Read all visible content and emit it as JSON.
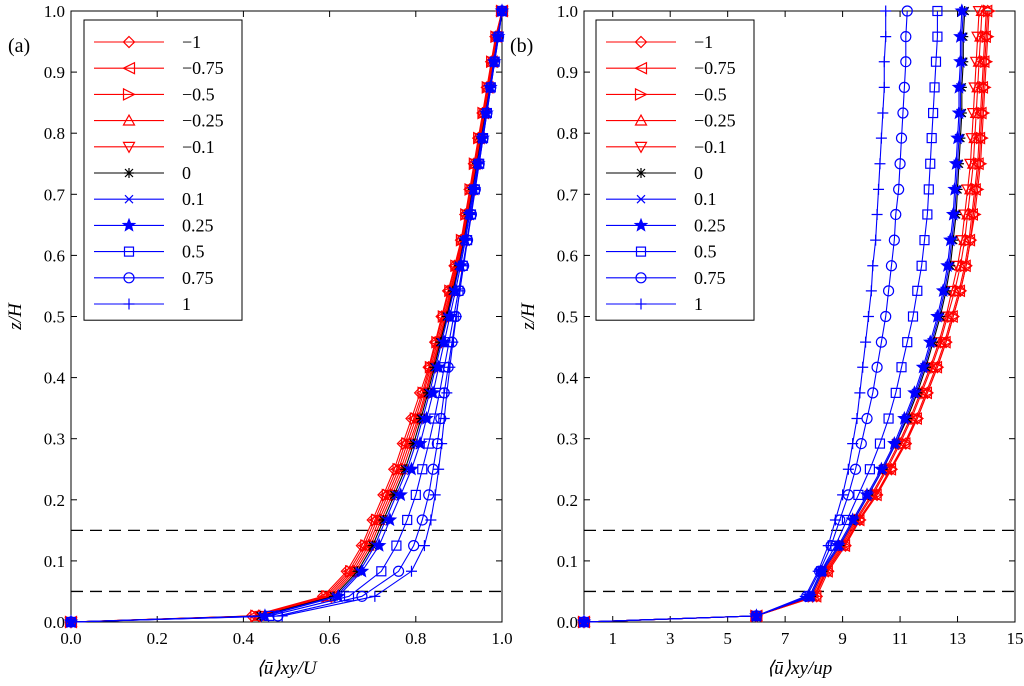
{
  "chart_data": [
    {
      "type": "line",
      "panel": "(a)",
      "xlabel": "⟨ū⟩xy/U",
      "ylabel": "z/H",
      "xlim": [
        0,
        1
      ],
      "ylim": [
        0,
        1
      ],
      "xticks": [
        "0.0",
        "0.2",
        "0.4",
        "0.6",
        "0.8",
        "1.0"
      ],
      "yticks": [
        "0.0",
        "0.1",
        "0.2",
        "0.3",
        "0.4",
        "0.5",
        "0.6",
        "0.7",
        "0.8",
        "0.9",
        "1.0"
      ],
      "hlines": [
        0.05,
        0.15
      ],
      "legend": "top-left",
      "z": [
        0,
        0.01,
        0.042,
        0.083,
        0.125,
        0.167,
        0.208,
        0.25,
        0.292,
        0.333,
        0.375,
        0.417,
        0.458,
        0.5,
        0.542,
        0.583,
        0.625,
        0.667,
        0.708,
        0.75,
        0.792,
        0.833,
        0.875,
        0.917,
        0.958,
        1.0
      ],
      "series": [
        {
          "name": "−1",
          "color": "#ff0000",
          "marker": "diamond",
          "values": [
            0,
            0.42,
            0.585,
            0.64,
            0.675,
            0.7,
            0.725,
            0.75,
            0.77,
            0.79,
            0.81,
            0.83,
            0.845,
            0.86,
            0.875,
            0.89,
            0.905,
            0.915,
            0.925,
            0.935,
            0.945,
            0.955,
            0.965,
            0.975,
            0.985,
            1.0
          ]
        },
        {
          "name": "−0.75",
          "color": "#ff0000",
          "marker": "triangle-left",
          "values": [
            0,
            0.425,
            0.59,
            0.645,
            0.68,
            0.705,
            0.73,
            0.755,
            0.775,
            0.795,
            0.815,
            0.832,
            0.847,
            0.862,
            0.877,
            0.892,
            0.906,
            0.916,
            0.926,
            0.936,
            0.946,
            0.956,
            0.966,
            0.976,
            0.986,
            1.0
          ]
        },
        {
          "name": "−0.5",
          "color": "#ff0000",
          "marker": "triangle-right",
          "values": [
            0,
            0.43,
            0.595,
            0.65,
            0.685,
            0.71,
            0.735,
            0.76,
            0.78,
            0.8,
            0.818,
            0.835,
            0.85,
            0.865,
            0.88,
            0.894,
            0.907,
            0.917,
            0.927,
            0.937,
            0.947,
            0.957,
            0.967,
            0.977,
            0.987,
            1.0
          ]
        },
        {
          "name": "−0.25",
          "color": "#ff0000",
          "marker": "triangle-up",
          "values": [
            0,
            0.435,
            0.6,
            0.655,
            0.69,
            0.715,
            0.74,
            0.765,
            0.785,
            0.805,
            0.822,
            0.838,
            0.853,
            0.868,
            0.882,
            0.896,
            0.909,
            0.919,
            0.929,
            0.938,
            0.948,
            0.958,
            0.968,
            0.978,
            0.988,
            1.0
          ]
        },
        {
          "name": "−0.1",
          "color": "#ff0000",
          "marker": "triangle-down",
          "values": [
            0,
            0.44,
            0.605,
            0.66,
            0.695,
            0.72,
            0.745,
            0.77,
            0.79,
            0.808,
            0.825,
            0.84,
            0.855,
            0.87,
            0.884,
            0.898,
            0.91,
            0.92,
            0.93,
            0.94,
            0.95,
            0.96,
            0.97,
            0.98,
            0.99,
            1.0
          ]
        },
        {
          "name": "0",
          "color": "#000000",
          "marker": "asterisk",
          "values": [
            0,
            0.44,
            0.61,
            0.665,
            0.7,
            0.725,
            0.75,
            0.775,
            0.795,
            0.812,
            0.828,
            0.843,
            0.857,
            0.872,
            0.886,
            0.9,
            0.912,
            0.922,
            0.932,
            0.942,
            0.952,
            0.962,
            0.972,
            0.981,
            0.99,
            1.0
          ]
        },
        {
          "name": "0.1",
          "color": "#0000ff",
          "marker": "x",
          "values": [
            0,
            0.445,
            0.615,
            0.67,
            0.705,
            0.73,
            0.755,
            0.78,
            0.8,
            0.816,
            0.832,
            0.846,
            0.86,
            0.874,
            0.888,
            0.901,
            0.913,
            0.923,
            0.933,
            0.943,
            0.953,
            0.963,
            0.972,
            0.981,
            0.99,
            1.0
          ]
        },
        {
          "name": "0.25",
          "color": "#0000ff",
          "marker": "star",
          "values": [
            0,
            0.45,
            0.62,
            0.675,
            0.715,
            0.74,
            0.765,
            0.79,
            0.81,
            0.825,
            0.84,
            0.853,
            0.866,
            0.879,
            0.892,
            0.904,
            0.915,
            0.925,
            0.935,
            0.945,
            0.955,
            0.964,
            0.973,
            0.982,
            0.991,
            1.0
          ]
        },
        {
          "name": "0.5",
          "color": "#0000ff",
          "marker": "square",
          "values": [
            0,
            0.46,
            0.645,
            0.72,
            0.755,
            0.78,
            0.8,
            0.815,
            0.83,
            0.843,
            0.855,
            0.866,
            0.877,
            0.888,
            0.899,
            0.909,
            0.919,
            0.928,
            0.937,
            0.947,
            0.956,
            0.965,
            0.974,
            0.983,
            0.992,
            1.0
          ]
        },
        {
          "name": "0.75",
          "color": "#0000ff",
          "marker": "circle",
          "values": [
            0,
            0.48,
            0.675,
            0.76,
            0.795,
            0.815,
            0.83,
            0.84,
            0.85,
            0.858,
            0.866,
            0.875,
            0.884,
            0.893,
            0.902,
            0.911,
            0.92,
            0.929,
            0.938,
            0.947,
            0.956,
            0.965,
            0.974,
            0.983,
            0.992,
            1.0
          ]
        },
        {
          "name": "1",
          "color": "#0000ff",
          "marker": "plus",
          "values": [
            0,
            0.49,
            0.705,
            0.79,
            0.82,
            0.835,
            0.845,
            0.853,
            0.86,
            0.866,
            0.872,
            0.879,
            0.886,
            0.894,
            0.902,
            0.91,
            0.919,
            0.928,
            0.937,
            0.946,
            0.955,
            0.964,
            0.973,
            0.982,
            0.991,
            1.0
          ]
        }
      ]
    },
    {
      "type": "line",
      "panel": "(b)",
      "xlabel": "⟨ū⟩xy/up",
      "ylabel": "z/H",
      "xlim": [
        0,
        15
      ],
      "ylim": [
        0,
        1
      ],
      "xticks": [
        "1",
        "3",
        "5",
        "7",
        "9",
        "11",
        "13",
        "15"
      ],
      "yticks": [
        "0.0",
        "0.1",
        "0.2",
        "0.3",
        "0.4",
        "0.5",
        "0.6",
        "0.7",
        "0.8",
        "0.9",
        "1.0"
      ],
      "hlines": [
        0.05,
        0.15
      ],
      "legend": "top-left",
      "z": [
        0,
        0.01,
        0.042,
        0.083,
        0.125,
        0.167,
        0.208,
        0.25,
        0.292,
        0.333,
        0.375,
        0.417,
        0.458,
        0.5,
        0.542,
        0.583,
        0.625,
        0.667,
        0.708,
        0.75,
        0.792,
        0.833,
        0.875,
        0.917,
        0.958,
        1.0
      ],
      "series": [
        {
          "name": "−1",
          "color": "#ff0000",
          "marker": "diamond",
          "values": [
            0,
            6.0,
            8.1,
            8.5,
            9.1,
            9.6,
            10.2,
            10.7,
            11.2,
            11.6,
            11.95,
            12.3,
            12.6,
            12.85,
            13.1,
            13.3,
            13.45,
            13.55,
            13.65,
            13.75,
            13.8,
            13.85,
            13.9,
            13.95,
            14.0,
            14.05
          ]
        },
        {
          "name": "−0.75",
          "color": "#ff0000",
          "marker": "triangle-left",
          "values": [
            0,
            6.0,
            8.05,
            8.45,
            9.05,
            9.55,
            10.15,
            10.65,
            11.15,
            11.55,
            11.9,
            12.25,
            12.55,
            12.8,
            13.05,
            13.25,
            13.4,
            13.5,
            13.6,
            13.7,
            13.75,
            13.8,
            13.85,
            13.9,
            13.95,
            14.0
          ]
        },
        {
          "name": "−0.5",
          "color": "#ff0000",
          "marker": "triangle-right",
          "values": [
            0,
            6.0,
            8.0,
            8.45,
            9.05,
            9.6,
            10.15,
            10.7,
            11.15,
            11.6,
            11.95,
            12.3,
            12.6,
            12.85,
            13.1,
            13.3,
            13.45,
            13.6,
            13.7,
            13.8,
            13.85,
            13.9,
            13.95,
            14.0,
            14.05,
            14.1
          ]
        },
        {
          "name": "−0.25",
          "color": "#ff0000",
          "marker": "triangle-up",
          "values": [
            0,
            6.0,
            8.0,
            8.4,
            9.0,
            9.5,
            10.05,
            10.55,
            11.0,
            11.4,
            11.75,
            12.1,
            12.4,
            12.65,
            12.9,
            13.1,
            13.25,
            13.35,
            13.45,
            13.55,
            13.6,
            13.65,
            13.7,
            13.75,
            13.8,
            13.85
          ]
        },
        {
          "name": "−0.1",
          "color": "#ff0000",
          "marker": "triangle-down",
          "values": [
            0,
            6.0,
            7.95,
            8.35,
            8.95,
            9.45,
            10.0,
            10.5,
            10.95,
            11.35,
            11.7,
            12.05,
            12.35,
            12.6,
            12.8,
            13.0,
            13.15,
            13.25,
            13.35,
            13.45,
            13.5,
            13.55,
            13.6,
            13.65,
            13.7,
            13.75
          ]
        },
        {
          "name": "0",
          "color": "#000000",
          "marker": "asterisk",
          "values": [
            0,
            6.0,
            7.9,
            8.3,
            8.9,
            9.4,
            9.9,
            10.4,
            10.85,
            11.25,
            11.6,
            11.9,
            12.15,
            12.4,
            12.6,
            12.75,
            12.85,
            12.95,
            13.0,
            13.05,
            13.1,
            13.15,
            13.15,
            13.2,
            13.2,
            13.25
          ]
        },
        {
          "name": "0.1",
          "color": "#0000ff",
          "marker": "x",
          "values": [
            0,
            6.0,
            7.9,
            8.3,
            8.9,
            9.4,
            9.9,
            10.4,
            10.85,
            11.2,
            11.55,
            11.85,
            12.1,
            12.35,
            12.55,
            12.7,
            12.8,
            12.9,
            12.95,
            13.0,
            13.05,
            13.1,
            13.1,
            13.15,
            13.15,
            13.2
          ]
        },
        {
          "name": "0.25",
          "color": "#0000ff",
          "marker": "star",
          "values": [
            0,
            6.0,
            7.85,
            8.25,
            8.85,
            9.35,
            9.85,
            10.35,
            10.8,
            11.15,
            11.5,
            11.8,
            12.05,
            12.3,
            12.5,
            12.65,
            12.75,
            12.85,
            12.9,
            12.95,
            13.0,
            13.05,
            13.05,
            13.1,
            13.1,
            13.15
          ]
        },
        {
          "name": "0.5",
          "color": "#0000ff",
          "marker": "square",
          "values": [
            0,
            6.0,
            7.85,
            8.25,
            8.75,
            9.15,
            9.55,
            9.95,
            10.3,
            10.6,
            10.85,
            11.05,
            11.25,
            11.45,
            11.6,
            11.75,
            11.85,
            11.95,
            12.0,
            12.05,
            12.1,
            12.15,
            12.2,
            12.25,
            12.3,
            12.3
          ]
        },
        {
          "name": "0.75",
          "color": "#0000ff",
          "marker": "circle",
          "values": [
            0,
            6.0,
            7.75,
            8.2,
            8.6,
            8.9,
            9.2,
            9.45,
            9.65,
            9.85,
            10.05,
            10.2,
            10.35,
            10.5,
            10.6,
            10.7,
            10.8,
            10.85,
            10.95,
            11.0,
            11.05,
            11.1,
            11.15,
            11.2,
            11.2,
            11.25
          ]
        },
        {
          "name": "1",
          "color": "#0000ff",
          "marker": "plus",
          "values": [
            0,
            6.0,
            7.7,
            8.15,
            8.5,
            8.75,
            9.0,
            9.2,
            9.35,
            9.5,
            9.6,
            9.7,
            9.8,
            9.9,
            10.0,
            10.05,
            10.15,
            10.2,
            10.25,
            10.3,
            10.35,
            10.4,
            10.45,
            10.45,
            10.5,
            10.5
          ]
        }
      ]
    }
  ]
}
